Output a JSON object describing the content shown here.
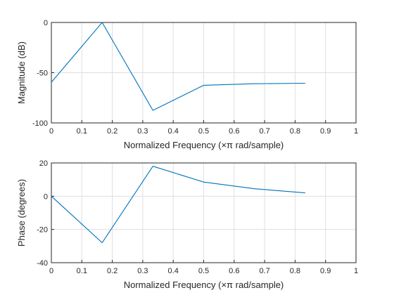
{
  "chart_data": [
    {
      "type": "line",
      "xlabel": "Normalized Frequency  (×π rad/sample)",
      "ylabel": "Magnitude (dB)",
      "xlim": [
        0,
        1
      ],
      "ylim": [
        -100,
        0
      ],
      "xticks": [
        "0",
        "0.1",
        "0.2",
        "0.3",
        "0.4",
        "0.5",
        "0.6",
        "0.7",
        "0.8",
        "0.9",
        "1"
      ],
      "yticks": [
        "-100",
        "-50",
        "0"
      ],
      "grid": true,
      "series": [
        {
          "x": [
            0,
            0.1667,
            0.3333,
            0.5,
            0.6667,
            0.8333
          ],
          "y": [
            -59.5,
            0,
            -87.5,
            -62.5,
            -61,
            -60.5
          ]
        }
      ]
    },
    {
      "type": "line",
      "xlabel": "Normalized Frequency  (×π rad/sample)",
      "ylabel": "Phase (degrees)",
      "xlim": [
        0,
        1
      ],
      "ylim": [
        -40,
        20
      ],
      "xticks": [
        "0",
        "0.1",
        "0.2",
        "0.3",
        "0.4",
        "0.5",
        "0.6",
        "0.7",
        "0.8",
        "0.9",
        "1"
      ],
      "yticks": [
        "-40",
        "-20",
        "0",
        "20"
      ],
      "grid": true,
      "series": [
        {
          "x": [
            0,
            0.1667,
            0.3333,
            0.5,
            0.6667,
            0.8333
          ],
          "y": [
            0,
            -28,
            18,
            8.5,
            4.5,
            2
          ]
        }
      ]
    }
  ],
  "colors": {
    "series": "#0072bd",
    "grid": "#dfdfdf",
    "axes": "#262626"
  }
}
